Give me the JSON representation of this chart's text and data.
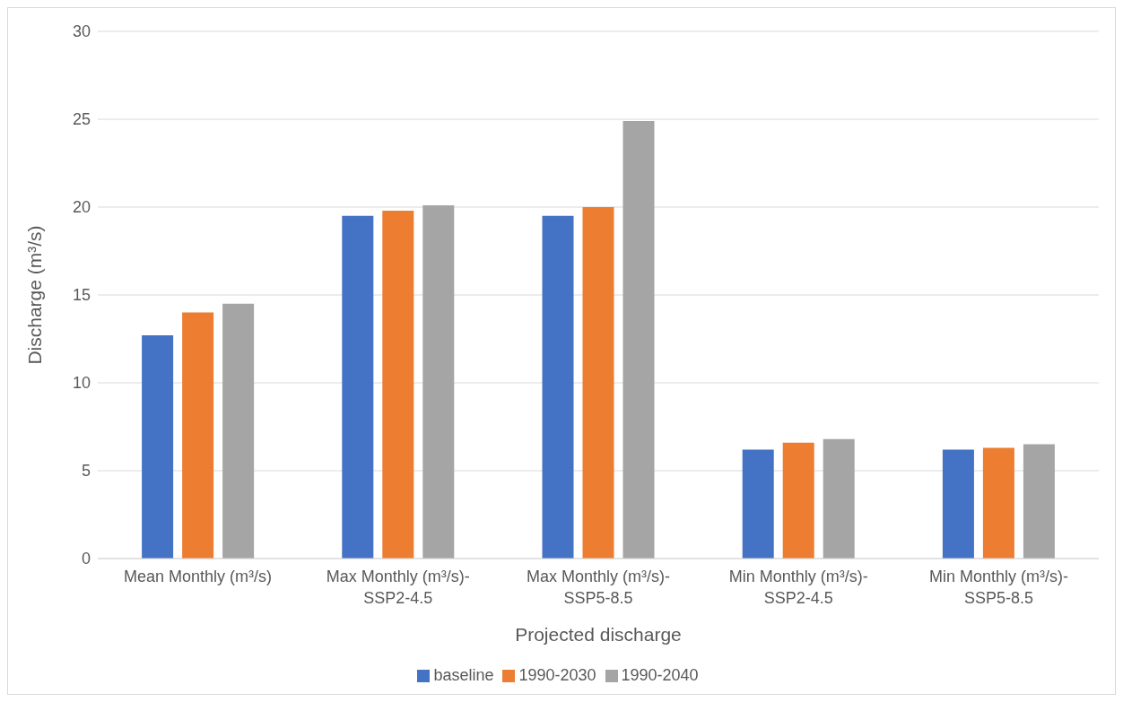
{
  "chart_data": {
    "type": "bar",
    "xlabel": "Projected discharge",
    "ylabel": "Discharge (m³/s)",
    "categories": [
      "Mean Monthly (m³/s)",
      "Max Monthly (m³/s)-SSP2-4.5",
      "Max Monthly (m³/s)-SSP5-8.5",
      "Min Monthly (m³/s)-SSP2-4.5",
      "Min Monthly (m³/s)-SSP5-8.5"
    ],
    "series": [
      {
        "name": "baseline",
        "color": "#4472c4",
        "values": [
          12.7,
          19.5,
          19.5,
          6.2,
          6.2
        ]
      },
      {
        "name": "1990-2030",
        "color": "#ed7d31",
        "values": [
          14.0,
          19.8,
          20.0,
          6.6,
          6.3
        ]
      },
      {
        "name": "1990-2040",
        "color": "#a5a5a5",
        "values": [
          14.5,
          20.1,
          24.9,
          6.8,
          6.5
        ]
      }
    ],
    "ylim": [
      0,
      30
    ],
    "yticks": [
      0,
      5,
      10,
      15,
      20,
      25,
      30
    ],
    "grid": "y",
    "legend": "bottom"
  }
}
